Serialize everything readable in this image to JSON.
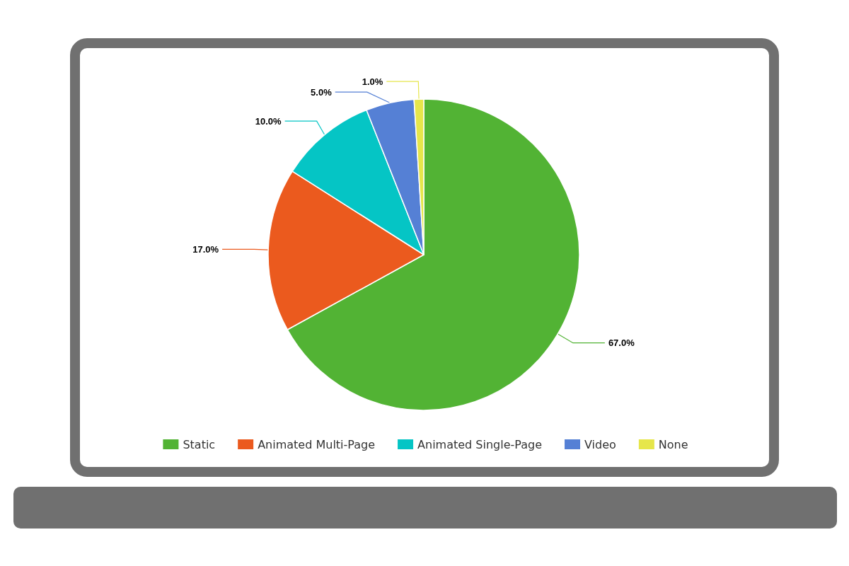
{
  "chart_data": {
    "type": "pie",
    "categories": [
      "Static",
      "Animated Multi-Page",
      "Animated Single-Page",
      "Video",
      "None"
    ],
    "values": [
      67,
      17,
      10,
      5,
      1
    ],
    "value_labels": [
      "67.0%",
      "17.0%",
      "10.0%",
      "5.0%",
      "1.0%"
    ],
    "colors": [
      "#52b334",
      "#eb5a1e",
      "#05c5c5",
      "#5580d5",
      "#e6e64a"
    ],
    "legend": "bottom"
  }
}
